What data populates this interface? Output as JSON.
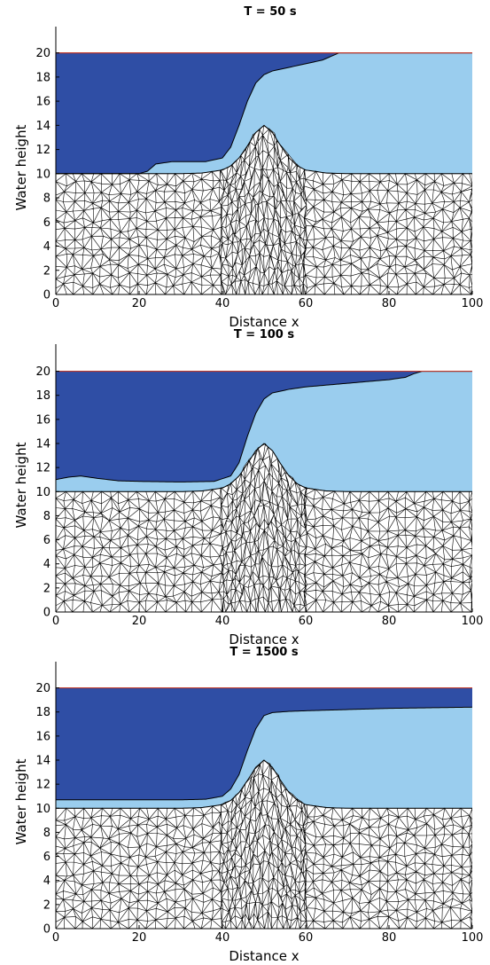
{
  "chart_data": [
    {
      "type": "area",
      "title": "T = 50 s",
      "xlabel": "Distance x",
      "ylabel": "Water height",
      "xlim": [
        0,
        100
      ],
      "ylim": [
        0,
        21
      ],
      "x_ticks": [
        0,
        20,
        40,
        60,
        80,
        100
      ],
      "y_ticks": [
        0,
        2,
        4,
        6,
        8,
        10,
        12,
        14,
        16,
        18,
        20
      ],
      "grid": false,
      "colors": {
        "upper_layer": "#2f4ea5",
        "lower_layer": "#9acdee",
        "mesh": "#000000",
        "free_surface": "#c0392b"
      },
      "bed": {
        "x": [
          0,
          30,
          35,
          40,
          42,
          44,
          46,
          48,
          50,
          52,
          54,
          56,
          58,
          60,
          65,
          70,
          100
        ],
        "y": [
          10,
          10,
          10.05,
          10.3,
          10.65,
          11.3,
          12.3,
          13.4,
          14,
          13.4,
          12.3,
          11.3,
          10.65,
          10.3,
          10.05,
          10,
          10
        ]
      },
      "free_surface": {
        "x": [
          0,
          100
        ],
        "y": [
          20,
          20
        ]
      },
      "interface": {
        "x": [
          0,
          20,
          22,
          24,
          28,
          32,
          36,
          40,
          42,
          44,
          46,
          48,
          50,
          52,
          56,
          60,
          64,
          66,
          68,
          72,
          100
        ],
        "y": [
          10,
          10,
          10.2,
          10.8,
          11.0,
          11.0,
          11.0,
          11.3,
          12.2,
          14.0,
          16.0,
          17.5,
          18.2,
          18.5,
          18.8,
          19.1,
          19.4,
          19.7,
          20,
          20,
          20
        ]
      }
    },
    {
      "type": "area",
      "title": "T = 100 s",
      "xlabel": "Distance x",
      "ylabel": "Water height",
      "xlim": [
        0,
        100
      ],
      "ylim": [
        0,
        21
      ],
      "x_ticks": [
        0,
        20,
        40,
        60,
        80,
        100
      ],
      "y_ticks": [
        0,
        2,
        4,
        6,
        8,
        10,
        12,
        14,
        16,
        18,
        20
      ],
      "grid": false,
      "colors": {
        "upper_layer": "#2f4ea5",
        "lower_layer": "#9acdee",
        "mesh": "#000000",
        "free_surface": "#c0392b"
      },
      "bed": {
        "x": [
          0,
          30,
          35,
          40,
          42,
          44,
          46,
          48,
          50,
          52,
          54,
          56,
          58,
          60,
          65,
          70,
          100
        ],
        "y": [
          10,
          10,
          10.05,
          10.3,
          10.65,
          11.3,
          12.3,
          13.4,
          14,
          13.4,
          12.3,
          11.3,
          10.65,
          10.3,
          10.05,
          10,
          10
        ]
      },
      "free_surface": {
        "x": [
          0,
          100
        ],
        "y": [
          20,
          20
        ]
      },
      "interface": {
        "x": [
          0,
          3,
          6,
          10,
          15,
          20,
          30,
          38,
          42,
          44,
          46,
          48,
          50,
          52,
          56,
          60,
          70,
          80,
          84,
          86,
          88,
          100
        ],
        "y": [
          11.0,
          11.2,
          11.3,
          11.1,
          10.9,
          10.85,
          10.8,
          10.85,
          11.3,
          12.4,
          14.6,
          16.5,
          17.7,
          18.2,
          18.5,
          18.7,
          19.0,
          19.3,
          19.5,
          19.8,
          20,
          20
        ]
      }
    },
    {
      "type": "area",
      "title": "T = 1500 s",
      "xlabel": "Distance x",
      "ylabel": "Water height",
      "xlim": [
        0,
        100
      ],
      "ylim": [
        0,
        21
      ],
      "x_ticks": [
        0,
        20,
        40,
        60,
        80,
        100
      ],
      "y_ticks": [
        0,
        2,
        4,
        6,
        8,
        10,
        12,
        14,
        16,
        18,
        20
      ],
      "grid": false,
      "colors": {
        "upper_layer": "#2f4ea5",
        "lower_layer": "#9acdee",
        "mesh": "#000000",
        "free_surface": "#c0392b"
      },
      "bed": {
        "x": [
          0,
          30,
          35,
          40,
          42,
          44,
          46,
          48,
          50,
          52,
          54,
          56,
          58,
          60,
          65,
          70,
          100
        ],
        "y": [
          10,
          10,
          10.05,
          10.3,
          10.65,
          11.3,
          12.3,
          13.4,
          14,
          13.4,
          12.3,
          11.3,
          10.65,
          10.3,
          10.05,
          10,
          10
        ]
      },
      "free_surface": {
        "x": [
          0,
          100
        ],
        "y": [
          20,
          20
        ]
      },
      "interface": {
        "x": [
          0,
          10,
          20,
          30,
          36,
          40,
          42,
          44,
          46,
          48,
          50,
          52,
          56,
          60,
          70,
          80,
          90,
          100
        ],
        "y": [
          10.7,
          10.7,
          10.7,
          10.7,
          10.75,
          11.0,
          11.6,
          12.8,
          14.8,
          16.6,
          17.7,
          17.95,
          18.05,
          18.1,
          18.2,
          18.3,
          18.35,
          18.4
        ]
      }
    }
  ]
}
